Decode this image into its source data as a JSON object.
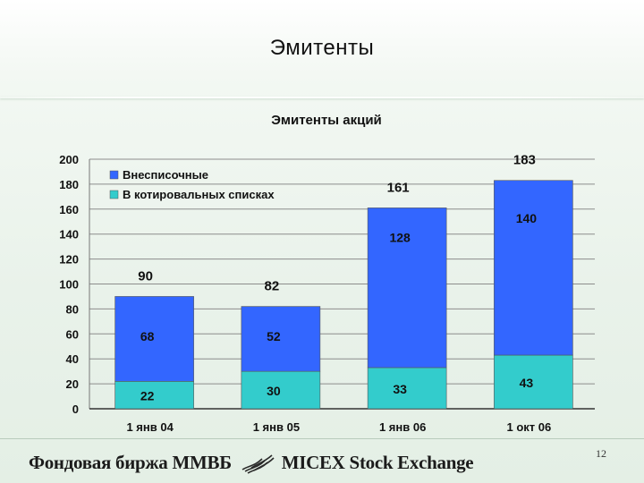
{
  "slide": {
    "title": "Эмитенты",
    "page_number": "12"
  },
  "footer": {
    "logo_left_text": "Фондовая биржа ММВБ",
    "logo_right_text": "MICEX Stock Exchange",
    "logo_icon": "micex-stripes-logo"
  },
  "chart_data": {
    "type": "bar",
    "stacked": true,
    "title": "Эмитенты акций",
    "categories": [
      "1 янв 04",
      "1 янв 05",
      "1 янв 06",
      "1 окт 06"
    ],
    "series": [
      {
        "name": "В котировальных списках",
        "values": [
          22,
          30,
          33,
          43
        ],
        "color": "#33cccc"
      },
      {
        "name": "Внесписочные",
        "values": [
          68,
          52,
          128,
          140
        ],
        "color": "#3366ff"
      }
    ],
    "totals": [
      90,
      82,
      161,
      183
    ],
    "ylim": [
      0,
      200
    ],
    "yticks": [
      0,
      20,
      40,
      60,
      80,
      100,
      120,
      140,
      160,
      180,
      200
    ],
    "grid": true,
    "legend_position": "top-left"
  }
}
